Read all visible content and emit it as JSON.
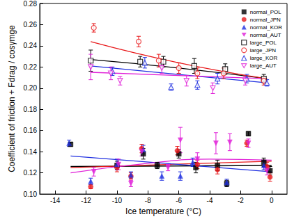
{
  "chart_data": {
    "type": "scatter",
    "x_label": "Ice temperature (°C)",
    "y_label": "Coefficient of friction + Fdrag / cosγmge",
    "xlim": [
      -15,
      1
    ],
    "xticks": [
      -14,
      -12,
      -10,
      -8,
      -6,
      -4,
      -2,
      0
    ],
    "ylim": [
      0.1,
      0.28
    ],
    "yticks": [
      {
        "value": 0.1,
        "label": "0.10"
      },
      {
        "value": 0.12,
        "label": "0.12"
      },
      {
        "value": 0.14,
        "label": "0.14"
      },
      {
        "value": 0.16,
        "label": "0.16"
      },
      {
        "value": 0.18,
        "label": "0.18"
      },
      {
        "value": 0.2,
        "label": "0.20"
      },
      {
        "value": 0.22,
        "label": "0.22"
      },
      {
        "value": 0.24,
        "label": "0.24"
      },
      {
        "value": 0.26,
        "label": "0.26"
      },
      {
        "value": 0.28,
        "label": "0.28"
      }
    ],
    "grid": false,
    "legend": "upper right",
    "series": [
      {
        "name": "normal_POL",
        "color": "#000000",
        "marker": "square",
        "x": [
          -13,
          -10,
          -8.3,
          -7.4,
          -6,
          -4.9,
          -3.5,
          -2.9,
          -1.5,
          -0.5,
          -0.1
        ],
        "values": [
          0.147,
          0.127,
          0.138,
          0.127,
          0.138,
          0.125,
          0.127,
          0.11,
          0.157,
          0.13,
          0.122
        ],
        "yerr": [
          0.002,
          0.004,
          0.005,
          0.003,
          0.004,
          0.005,
          0.005,
          0.003,
          0.002,
          0.004,
          0.004
        ],
        "fit_x": [
          -13,
          -6.5,
          0
        ],
        "fit_y": [
          0.126,
          0.1265,
          0.127
        ]
      },
      {
        "name": "normal_JPN",
        "color": "#e8191b",
        "marker": "circle",
        "x": [
          -11.7,
          -10,
          -9.1,
          -8.4,
          -6.1,
          -4.8,
          -3.5,
          -1.6,
          -0.3,
          -0.1
        ],
        "values": [
          0.107,
          0.125,
          0.117,
          0.143,
          0.141,
          0.128,
          0.123,
          0.148,
          0.126,
          0.116
        ],
        "yerr": [
          0.002,
          0.004,
          0.003,
          0.004,
          0.004,
          0.004,
          0.004,
          0.003,
          0.004,
          0.004
        ],
        "fit_x": [
          -13,
          -6.5,
          0
        ],
        "fit_y": [
          0.125,
          0.128,
          0.131
        ]
      },
      {
        "name": "normal_KOR",
        "color": "#1f2fe0",
        "marker": "triangle-up",
        "x": [
          -13.1,
          -11.7,
          -10,
          -9.1,
          -8.3,
          -7.1,
          -5.9,
          -5.1,
          -2.9,
          -0.5
        ],
        "values": [
          0.148,
          0.112,
          0.128,
          0.118,
          0.142,
          0.117,
          0.117,
          0.13,
          0.111,
          0.127
        ],
        "yerr": [
          0.003,
          0.003,
          0.005,
          0.003,
          0.004,
          0.004,
          0.004,
          0.004,
          0.003,
          0.004
        ],
        "fit_x": [
          -13,
          -6.5,
          0
        ],
        "fit_y": [
          0.136,
          0.1285,
          0.121
        ]
      },
      {
        "name": "normal_AUT",
        "color": "#e020d8",
        "marker": "triangle-down",
        "x": [
          -11.5,
          -9.9,
          -9.1,
          -8.4,
          -6.7,
          -5.9,
          -4.8,
          -3.6,
          -2.7,
          -1.5,
          -0.3
        ],
        "values": [
          0.121,
          0.128,
          0.11,
          0.14,
          0.125,
          0.151,
          0.133,
          0.148,
          0.149,
          0.148,
          0.122
        ],
        "yerr": [
          0.004,
          0.005,
          0.003,
          0.004,
          0.003,
          0.012,
          0.006,
          0.01,
          0.008,
          0.004,
          0.004
        ],
        "fit_x": [
          -13,
          -8,
          -4,
          0
        ],
        "fit_y": [
          0.12,
          0.129,
          0.133,
          0.132
        ]
      },
      {
        "name": "large_POL",
        "color": "#000000",
        "marker": "square-open",
        "x": [
          -11.7,
          -8.5,
          -7,
          -5,
          -3,
          -0.5
        ],
        "values": [
          0.226,
          0.225,
          0.225,
          0.221,
          0.218,
          0.209
        ],
        "yerr": [
          0.01,
          0.005,
          0.005,
          0.007,
          0.005,
          0.004
        ],
        "fit_x": [
          -11.7,
          -6,
          -0.3
        ],
        "fit_y": [
          0.227,
          0.219,
          0.209
        ]
      },
      {
        "name": "large_JPN",
        "color": "#e8191b",
        "marker": "circle-open",
        "x": [
          -11.5,
          -8.6,
          -7.3,
          -6,
          -4.8,
          -3.1,
          -0.5
        ],
        "values": [
          0.257,
          0.244,
          0.226,
          0.219,
          0.214,
          0.214,
          0.207
        ],
        "yerr": [
          0.004,
          0.005,
          0.006,
          0.005,
          0.005,
          0.005,
          0.004
        ],
        "fit_x": [
          -11.7,
          -6,
          -0.3
        ],
        "fit_y": [
          0.244,
          0.224,
          0.209
        ]
      },
      {
        "name": "large_KOR",
        "color": "#1f2fe0",
        "marker": "triangle-up-open",
        "x": [
          -10.3,
          -8.2,
          -6.5,
          -4.8,
          -3.5,
          -1.6,
          -0.3
        ],
        "values": [
          0.216,
          0.224,
          0.201,
          0.203,
          0.209,
          0.209,
          0.205
        ],
        "yerr": [
          0.004,
          0.005,
          0.003,
          0.004,
          0.005,
          0.004,
          0.003
        ],
        "fit_x": [
          -11.7,
          -6,
          -0.3
        ],
        "fit_y": [
          0.221,
          0.213,
          0.205
        ]
      },
      {
        "name": "large_AUT",
        "color": "#e020d8",
        "marker": "triangle-down-open",
        "x": [
          -11.7,
          -10.4,
          -9.8,
          -7.1,
          -5.5,
          -3.8,
          -1.7
        ],
        "values": [
          0.22,
          0.214,
          0.207,
          0.219,
          0.207,
          0.2,
          0.207
        ],
        "yerr": [
          0.012,
          0.006,
          0.004,
          0.005,
          0.005,
          0.005,
          0.004
        ],
        "fit_x": [
          -11.7,
          -6,
          -0.3
        ],
        "fit_y": [
          0.215,
          0.212,
          0.209
        ]
      }
    ]
  }
}
